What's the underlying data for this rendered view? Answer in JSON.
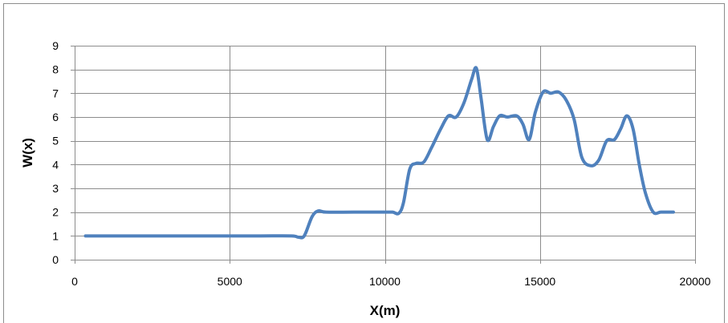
{
  "chart_data": {
    "type": "line",
    "title": "",
    "xlabel": "X(m)",
    "ylabel": "W(x)",
    "xlim": [
      0,
      20000
    ],
    "ylim": [
      0,
      9
    ],
    "x_ticks": [
      0,
      5000,
      10000,
      15000,
      20000
    ],
    "y_ticks": [
      0,
      1,
      2,
      3,
      4,
      5,
      6,
      7,
      8,
      9
    ],
    "grid": true,
    "legend": "none",
    "series": [
      {
        "color": "#4f81bd",
        "points": [
          [
            350,
            1
          ],
          [
            1000,
            1
          ],
          [
            2000,
            1
          ],
          [
            3000,
            1
          ],
          [
            4000,
            1
          ],
          [
            5000,
            1
          ],
          [
            6000,
            1
          ],
          [
            7000,
            1
          ],
          [
            7200,
            0.95
          ],
          [
            7400,
            1
          ],
          [
            7650,
            1.8
          ],
          [
            7850,
            2.05
          ],
          [
            8100,
            2
          ],
          [
            9000,
            2
          ],
          [
            10000,
            2
          ],
          [
            10250,
            2
          ],
          [
            10450,
            1.95
          ],
          [
            10600,
            2.4
          ],
          [
            10800,
            3.8
          ],
          [
            11000,
            4.05
          ],
          [
            11250,
            4.1
          ],
          [
            11500,
            4.7
          ],
          [
            11800,
            5.5
          ],
          [
            12050,
            6.05
          ],
          [
            12300,
            6
          ],
          [
            12550,
            6.6
          ],
          [
            12800,
            7.6
          ],
          [
            12950,
            8.05
          ],
          [
            13100,
            6.8
          ],
          [
            13300,
            5.05
          ],
          [
            13500,
            5.6
          ],
          [
            13700,
            6.05
          ],
          [
            13950,
            6
          ],
          [
            14250,
            6.05
          ],
          [
            14450,
            5.7
          ],
          [
            14650,
            5.05
          ],
          [
            14850,
            6.2
          ],
          [
            15100,
            7.05
          ],
          [
            15350,
            7
          ],
          [
            15600,
            7.05
          ],
          [
            15850,
            6.7
          ],
          [
            16100,
            5.9
          ],
          [
            16350,
            4.3
          ],
          [
            16650,
            3.95
          ],
          [
            16900,
            4.2
          ],
          [
            17150,
            5
          ],
          [
            17400,
            5.05
          ],
          [
            17600,
            5.5
          ],
          [
            17800,
            6.05
          ],
          [
            18000,
            5.5
          ],
          [
            18200,
            4
          ],
          [
            18400,
            2.8
          ],
          [
            18650,
            2
          ],
          [
            18900,
            2
          ],
          [
            19300,
            2
          ]
        ]
      }
    ]
  }
}
